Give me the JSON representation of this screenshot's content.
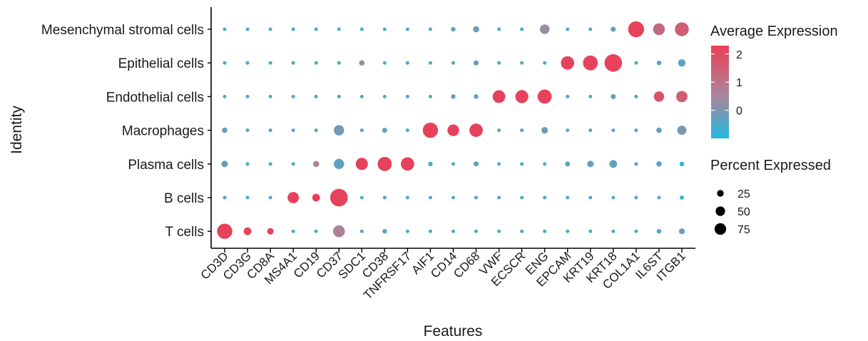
{
  "chart_data": {
    "type": "dotplot",
    "xlabel": "Features",
    "ylabel": "Identity",
    "features": [
      "CD3D",
      "CD3G",
      "CD8A",
      "MS4A1",
      "CD19",
      "CD37",
      "SDC1",
      "CD38",
      "TNFRSF17",
      "AIF1",
      "CD14",
      "CD68",
      "VWF",
      "ECSCR",
      "ENG",
      "EPCAM",
      "KRT19",
      "KRT18",
      "COL1A1",
      "IL6ST",
      "ITGB1"
    ],
    "identities": [
      "Mesenchymal stromal cells",
      "Epithelial cells",
      "Endothelial cells",
      "Macrophages",
      "Plasma cells",
      "B cells",
      "T cells"
    ],
    "avg_expression": [
      [
        -0.5,
        -0.5,
        -0.5,
        -0.5,
        -0.5,
        -0.5,
        -0.5,
        -0.5,
        -0.5,
        -0.5,
        -0.3,
        -0.2,
        -0.5,
        -0.5,
        0.3,
        -0.5,
        -0.5,
        -0.2,
        2.2,
        1.2,
        1.5
      ],
      [
        -0.5,
        -0.5,
        -0.5,
        -0.5,
        -0.5,
        -0.5,
        0.4,
        -0.5,
        -0.5,
        -0.5,
        -0.5,
        -0.2,
        -0.5,
        -0.5,
        -0.5,
        2.2,
        2.2,
        2.2,
        -0.5,
        -0.4,
        -0.4
      ],
      [
        -0.5,
        -0.5,
        -0.5,
        -0.5,
        -0.5,
        -0.5,
        -0.5,
        -0.5,
        -0.5,
        -0.5,
        -0.3,
        -0.4,
        2.2,
        2.2,
        2.2,
        -0.5,
        -0.5,
        -0.3,
        -0.5,
        1.8,
        1.5
      ],
      [
        -0.3,
        -0.5,
        -0.5,
        -0.5,
        -0.5,
        -0.1,
        -0.5,
        -0.3,
        -0.5,
        2.2,
        2.2,
        2.2,
        -0.5,
        -0.5,
        -0.2,
        -0.5,
        -0.5,
        -0.5,
        -0.5,
        -0.3,
        0.0
      ],
      [
        -0.3,
        -0.5,
        -0.5,
        -0.5,
        0.6,
        -0.3,
        2.2,
        2.2,
        2.2,
        -0.5,
        -0.5,
        -0.4,
        -0.5,
        -0.5,
        -0.5,
        -0.3,
        -0.3,
        -0.3,
        -0.5,
        -0.4,
        -0.9
      ],
      [
        -0.5,
        -0.5,
        -0.5,
        2.2,
        2.2,
        2.2,
        -0.5,
        -0.5,
        -0.5,
        -0.5,
        -0.5,
        -0.5,
        -0.5,
        -0.5,
        -0.5,
        -0.5,
        -0.5,
        -0.5,
        -0.5,
        -0.5,
        -0.8
      ],
      [
        2.2,
        2.2,
        2.2,
        -0.5,
        -0.5,
        0.6,
        -0.5,
        -0.4,
        -0.5,
        -0.5,
        -0.5,
        -0.5,
        -0.5,
        -0.5,
        -0.5,
        -0.5,
        -0.5,
        -0.5,
        -0.5,
        -0.4,
        -0.3
      ]
    ],
    "pct_expressed": [
      [
        3,
        3,
        3,
        3,
        3,
        3,
        3,
        3,
        3,
        3,
        5,
        9,
        3,
        3,
        22,
        3,
        3,
        6,
        60,
        33,
        45
      ],
      [
        3,
        3,
        3,
        3,
        3,
        3,
        7,
        3,
        3,
        3,
        3,
        6,
        3,
        3,
        3,
        42,
        52,
        72,
        3,
        5,
        13
      ],
      [
        3,
        3,
        3,
        3,
        3,
        3,
        3,
        3,
        3,
        3,
        5,
        5,
        38,
        40,
        47,
        3,
        3,
        6,
        3,
        25,
        30
      ],
      [
        7,
        3,
        3,
        3,
        3,
        25,
        3,
        6,
        3,
        55,
        32,
        42,
        3,
        3,
        10,
        3,
        3,
        3,
        3,
        7,
        20
      ],
      [
        10,
        3,
        3,
        3,
        9,
        25,
        35,
        47,
        42,
        5,
        3,
        6,
        3,
        3,
        3,
        6,
        10,
        14,
        3,
        7,
        5
      ],
      [
        3,
        3,
        3,
        30,
        14,
        73,
        3,
        3,
        3,
        3,
        3,
        3,
        3,
        3,
        3,
        3,
        3,
        3,
        3,
        3,
        4
      ],
      [
        55,
        14,
        10,
        3,
        3,
        33,
        3,
        5,
        3,
        3,
        3,
        3,
        3,
        3,
        3,
        3,
        3,
        3,
        3,
        5,
        8
      ]
    ],
    "color_legend": {
      "title": "Average Expression",
      "ticks": [
        2,
        1,
        0
      ],
      "range": [
        -1,
        2.3
      ],
      "low_color": "#20b8dd",
      "mid_color": "#a8879c",
      "high_color": "#ea3e57"
    },
    "size_legend": {
      "title": "Percent Expressed",
      "values": [
        25,
        50,
        75
      ]
    },
    "grid": false,
    "legend_position": "right"
  }
}
